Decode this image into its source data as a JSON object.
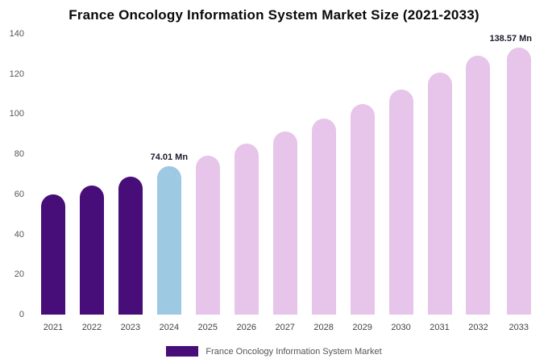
{
  "chart_data": {
    "type": "bar",
    "title": "France Oncology Information System Market Size (2021-2033)",
    "categories": [
      "2021",
      "2022",
      "2023",
      "2024",
      "2025",
      "2026",
      "2027",
      "2028",
      "2029",
      "2030",
      "2031",
      "2032",
      "2033"
    ],
    "values": [
      60.0,
      64.4,
      69.0,
      74.01,
      79.4,
      85.1,
      91.2,
      97.8,
      104.9,
      112.4,
      120.6,
      129.3,
      138.57
    ],
    "segments": [
      "past",
      "past",
      "past",
      "current",
      "forecast",
      "forecast",
      "forecast",
      "forecast",
      "forecast",
      "forecast",
      "forecast",
      "forecast",
      "forecast"
    ],
    "annotations": [
      {
        "category": "2024",
        "text": "74.01 Mn"
      },
      {
        "category": "2033",
        "text": "138.57 Mn"
      }
    ],
    "xlabel": "",
    "ylabel": "",
    "ylim": [
      0,
      140
    ],
    "yticks": [
      0,
      20,
      40,
      60,
      80,
      100,
      120,
      140
    ],
    "grid": false,
    "legend_position": "bottom",
    "legend_label": "France Oncology Information System Market",
    "colors": {
      "past": "#470D78",
      "current": "#9DC9E2",
      "forecast": "#E7C4E9",
      "legend_swatch": "#470D78",
      "annotation_text": "#1a1a2e",
      "axis_text": "#555555",
      "title_text": "#0a0a0a",
      "background": "#ffffff"
    }
  }
}
